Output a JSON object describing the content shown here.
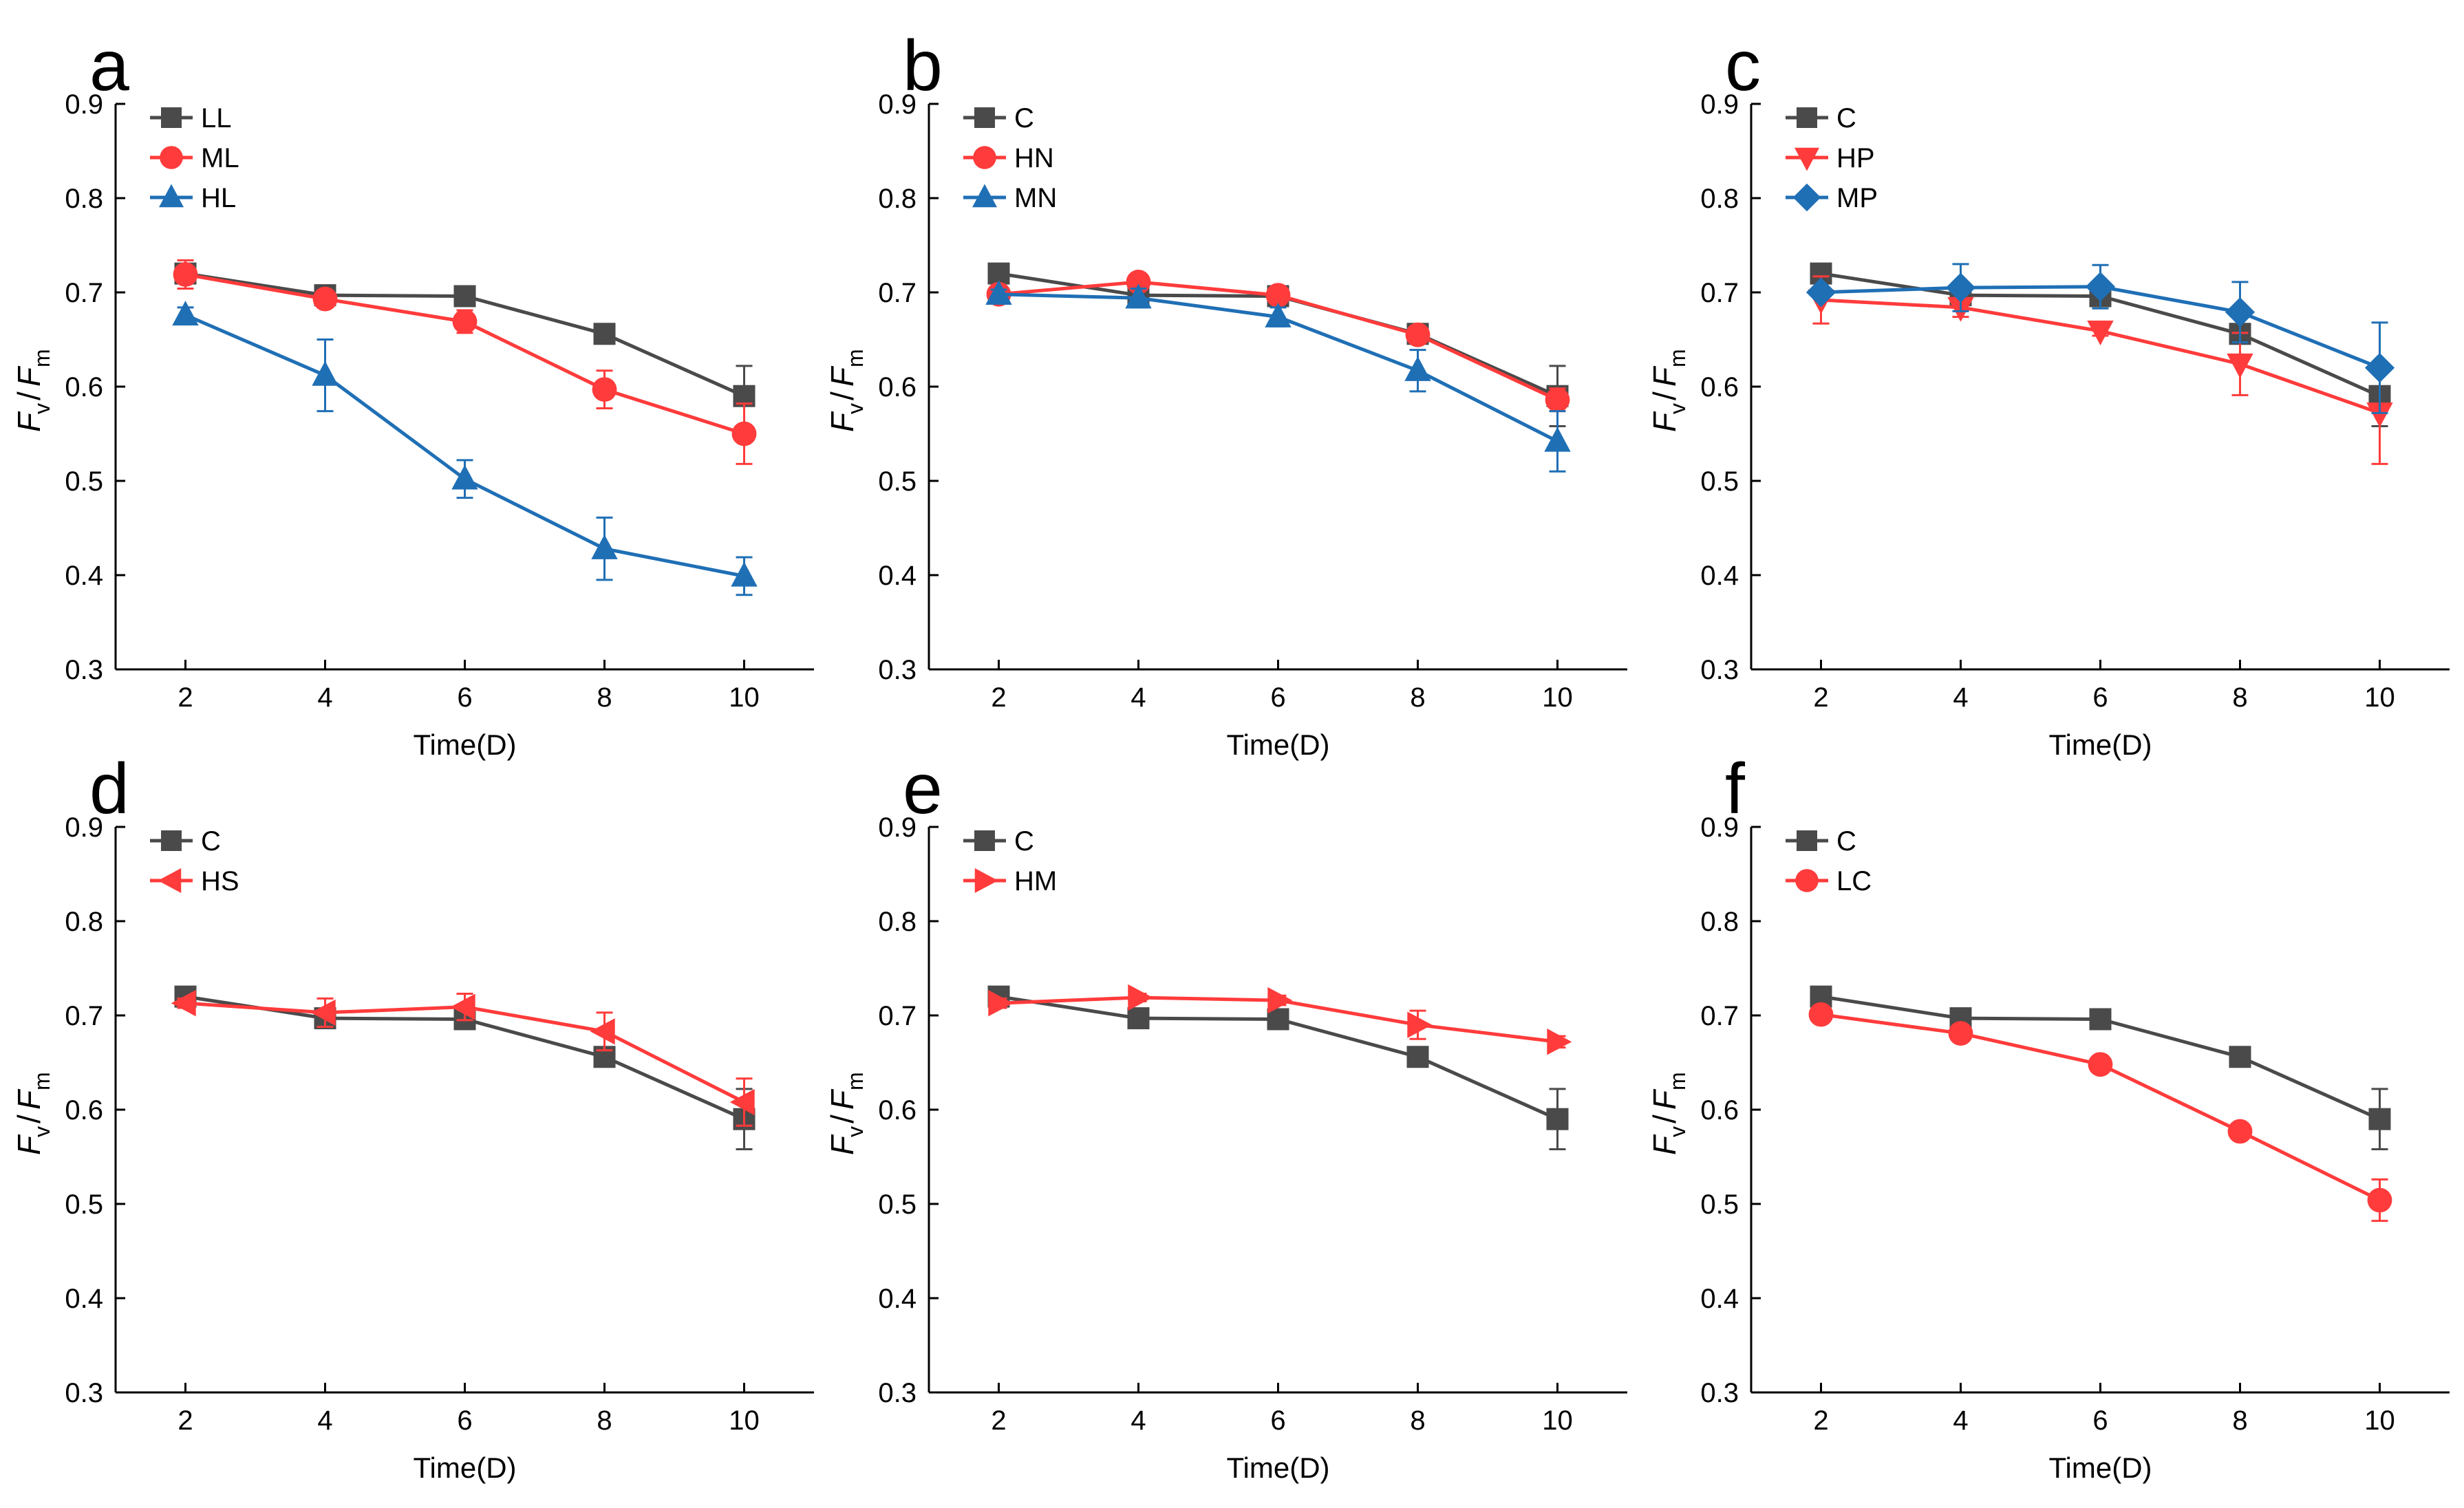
{
  "figure": {
    "x_ticks": [
      2,
      4,
      6,
      8,
      10
    ],
    "y_ticks": [
      "0.3",
      "0.4",
      "0.5",
      "0.6",
      "0.7",
      "0.8",
      "0.9"
    ]
  },
  "colors": {
    "gray": "#4a4a4a",
    "red": "#ff3b3b",
    "blue": "#1f6fb5"
  },
  "chart_data": [
    {
      "panel": "a",
      "type": "line",
      "xlabel": "Time(D)",
      "ylabel_main": "F",
      "ylabel_sub1": "v",
      "ylabel_sub2": "m",
      "x": [
        2,
        4,
        6,
        8,
        10
      ],
      "xlim": [
        1,
        11
      ],
      "ylim": [
        0.3,
        0.9
      ],
      "series": [
        {
          "name": "LL",
          "marker": "square",
          "color": "gray",
          "values": [
            0.72,
            0.697,
            0.696,
            0.656,
            0.59
          ],
          "errors": [
            0.005,
            0.004,
            0.005,
            0.006,
            0.032
          ]
        },
        {
          "name": "ML",
          "marker": "circle",
          "color": "red",
          "values": [
            0.719,
            0.693,
            0.669,
            0.597,
            0.55
          ],
          "errors": [
            0.015,
            0.006,
            0.012,
            0.02,
            0.032
          ]
        },
        {
          "name": "HL",
          "marker": "triangle-up",
          "color": "blue",
          "values": [
            0.676,
            0.612,
            0.502,
            0.428,
            0.399
          ],
          "errors": [
            0.008,
            0.038,
            0.02,
            0.033,
            0.02
          ]
        }
      ]
    },
    {
      "panel": "b",
      "type": "line",
      "xlabel": "Time(D)",
      "ylabel_main": "F",
      "ylabel_sub1": "v",
      "ylabel_sub2": "m",
      "x": [
        2,
        4,
        6,
        8,
        10
      ],
      "xlim": [
        1,
        11
      ],
      "ylim": [
        0.3,
        0.9
      ],
      "series": [
        {
          "name": "C",
          "marker": "square",
          "color": "gray",
          "values": [
            0.72,
            0.697,
            0.696,
            0.656,
            0.59
          ],
          "errors": [
            0.005,
            0.004,
            0.005,
            0.006,
            0.032
          ]
        },
        {
          "name": "HN",
          "marker": "circle",
          "color": "red",
          "values": [
            0.698,
            0.711,
            0.697,
            0.655,
            0.586
          ],
          "errors": [
            0.004,
            0.005,
            0.005,
            0.006,
            0.012
          ]
        },
        {
          "name": "MN",
          "marker": "triangle-up",
          "color": "blue",
          "values": [
            0.698,
            0.694,
            0.674,
            0.617,
            0.542
          ],
          "errors": [
            0.005,
            0.01,
            0.01,
            0.022,
            0.032
          ]
        }
      ]
    },
    {
      "panel": "c",
      "type": "line",
      "xlabel": "Time(D)",
      "ylabel_main": "F",
      "ylabel_sub1": "v",
      "ylabel_sub2": "m",
      "x": [
        2,
        4,
        6,
        8,
        10
      ],
      "xlim": [
        1,
        11
      ],
      "ylim": [
        0.3,
        0.9
      ],
      "series": [
        {
          "name": "C",
          "marker": "square",
          "color": "gray",
          "values": [
            0.72,
            0.697,
            0.696,
            0.656,
            0.59
          ],
          "errors": [
            0.005,
            0.004,
            0.005,
            0.006,
            0.032
          ]
        },
        {
          "name": "HP",
          "marker": "triangle-down",
          "color": "red",
          "values": [
            0.692,
            0.684,
            0.659,
            0.624,
            0.572
          ],
          "errors": [
            0.025,
            0.01,
            0.005,
            0.033,
            0.054
          ]
        },
        {
          "name": "MP",
          "marker": "diamond",
          "color": "blue",
          "values": [
            0.7,
            0.705,
            0.706,
            0.679,
            0.62
          ],
          "errors": [
            0.006,
            0.025,
            0.023,
            0.032,
            0.048
          ]
        }
      ]
    },
    {
      "panel": "d",
      "type": "line",
      "xlabel": "Time(D)",
      "ylabel_main": "F",
      "ylabel_sub1": "v",
      "ylabel_sub2": "m",
      "x": [
        2,
        4,
        6,
        8,
        10
      ],
      "xlim": [
        1,
        11
      ],
      "ylim": [
        0.3,
        0.9
      ],
      "series": [
        {
          "name": "C",
          "marker": "square",
          "color": "gray",
          "values": [
            0.72,
            0.697,
            0.696,
            0.656,
            0.59
          ],
          "errors": [
            0.005,
            0.004,
            0.005,
            0.006,
            0.032
          ]
        },
        {
          "name": "HS",
          "marker": "triangle-left",
          "color": "red",
          "values": [
            0.713,
            0.703,
            0.709,
            0.683,
            0.608
          ],
          "errors": [
            0.005,
            0.015,
            0.014,
            0.02,
            0.025
          ]
        }
      ]
    },
    {
      "panel": "e",
      "type": "line",
      "xlabel": "Time(D)",
      "ylabel_main": "F",
      "ylabel_sub1": "v",
      "ylabel_sub2": "m",
      "x": [
        2,
        4,
        6,
        8,
        10
      ],
      "xlim": [
        1,
        11
      ],
      "ylim": [
        0.3,
        0.9
      ],
      "series": [
        {
          "name": "C",
          "marker": "square",
          "color": "gray",
          "values": [
            0.72,
            0.697,
            0.696,
            0.656,
            0.59
          ],
          "errors": [
            0.005,
            0.004,
            0.005,
            0.006,
            0.032
          ]
        },
        {
          "name": "HM",
          "marker": "triangle-right",
          "color": "red",
          "values": [
            0.713,
            0.719,
            0.716,
            0.69,
            0.672
          ],
          "errors": [
            0.005,
            0.004,
            0.005,
            0.015,
            0.006
          ]
        }
      ]
    },
    {
      "panel": "f",
      "type": "line",
      "xlabel": "Time(D)",
      "ylabel_main": "F",
      "ylabel_sub1": "v",
      "ylabel_sub2": "m",
      "x": [
        2,
        4,
        6,
        8,
        10
      ],
      "xlim": [
        1,
        11
      ],
      "ylim": [
        0.3,
        0.9
      ],
      "series": [
        {
          "name": "C",
          "marker": "square",
          "color": "gray",
          "values": [
            0.72,
            0.697,
            0.696,
            0.656,
            0.59
          ],
          "errors": [
            0.005,
            0.004,
            0.005,
            0.006,
            0.032
          ]
        },
        {
          "name": "LC",
          "marker": "circle",
          "color": "red",
          "values": [
            0.701,
            0.681,
            0.648,
            0.577,
            0.504
          ],
          "errors": [
            0.004,
            0.005,
            0.005,
            0.006,
            0.022
          ]
        }
      ]
    }
  ]
}
